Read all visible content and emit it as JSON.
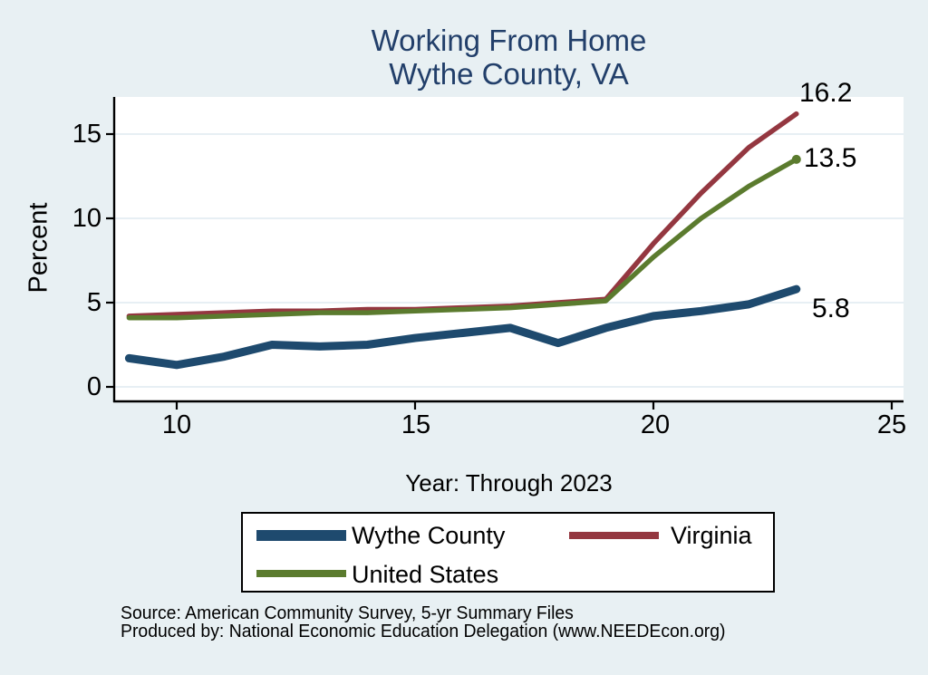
{
  "title": {
    "line1": "Working From Home",
    "line2": "Wythe County, VA"
  },
  "chart_data": {
    "type": "line",
    "title": "Working From Home - Wythe County, VA",
    "xlabel": "Year: Through 2023",
    "ylabel": "Percent",
    "x": [
      9,
      10,
      11,
      12,
      13,
      14,
      15,
      16,
      17,
      18,
      19,
      20,
      21,
      22,
      23
    ],
    "series": [
      {
        "name": "Wythe County",
        "color": "#1e4a6e",
        "line_width": 9,
        "end_label": "5.8",
        "end_marker": false,
        "values": [
          1.7,
          1.3,
          1.8,
          2.5,
          2.4,
          2.5,
          2.9,
          3.2,
          3.5,
          2.6,
          3.5,
          4.2,
          4.5,
          4.9,
          5.8
        ]
      },
      {
        "name": "Virginia",
        "color": "#943740",
        "line_width": 5.5,
        "end_label": "16.2",
        "end_marker": false,
        "values": [
          4.2,
          4.3,
          4.4,
          4.5,
          4.5,
          4.6,
          4.6,
          4.7,
          4.8,
          5.0,
          5.2,
          8.5,
          11.5,
          14.2,
          16.2
        ]
      },
      {
        "name": "United States",
        "color": "#5b7b2e",
        "line_width": 5.5,
        "end_label": "13.5",
        "end_marker": true,
        "values": [
          4.1,
          4.1,
          4.2,
          4.3,
          4.4,
          4.4,
          4.5,
          4.6,
          4.7,
          4.9,
          5.1,
          7.7,
          10.0,
          11.9,
          13.5
        ]
      }
    ],
    "x_ticks": [
      10,
      15,
      20,
      25
    ],
    "x_tick_labels": [
      "10",
      "15",
      "20",
      "25"
    ],
    "y_ticks": [
      0,
      5,
      10,
      15
    ],
    "y_tick_labels": [
      "0",
      "5",
      "10",
      "15"
    ],
    "xlim": [
      8.7,
      25.3
    ],
    "ylim": [
      0,
      17
    ],
    "grid": true,
    "legend_position": "bottom"
  },
  "footer": {
    "source_line": "Source: American Community Survey, 5-yr Summary Files",
    "produced_line": "Produced by: National Economic Education Delegation (www.NEEDEcon.org)"
  },
  "colors": {
    "background": "#e8f0f3",
    "plot_background": "#ffffff",
    "gridline": "#dfeaf0",
    "axis": "#000000",
    "title_text": "#223f6a"
  }
}
